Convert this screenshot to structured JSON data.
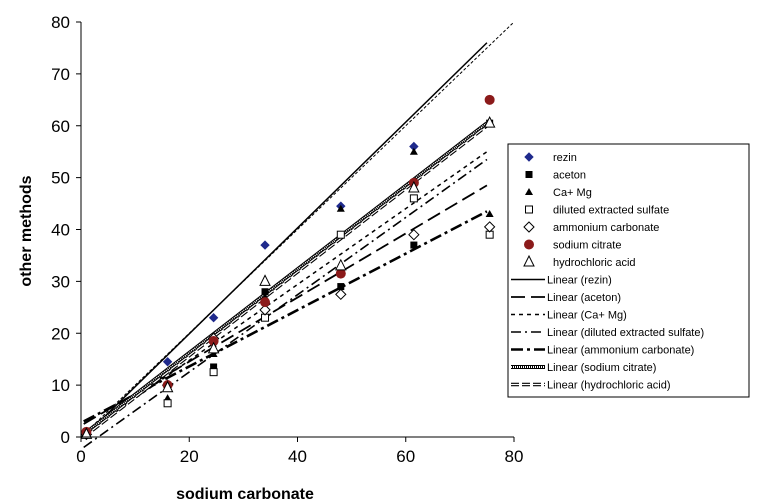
{
  "chart_data": {
    "type": "scatter",
    "xlabel": "sodium carbonate",
    "ylabel": "other methods",
    "xlim": [
      0,
      80
    ],
    "ylim": [
      0,
      80
    ],
    "x_ticks": [
      0,
      20,
      40,
      60,
      80
    ],
    "y_ticks": [
      0,
      10,
      20,
      30,
      40,
      50,
      60,
      70,
      80
    ],
    "grid": false,
    "legend_position": "right",
    "reference_line": {
      "x": [
        0,
        80
      ],
      "y": [
        0,
        80
      ],
      "style": "dotted"
    },
    "series": [
      {
        "name": "rezin",
        "marker": "diamond-filled",
        "color": "#1f2a8c",
        "x": [
          1,
          16,
          24.5,
          34,
          48,
          61.5,
          75.5
        ],
        "y": [
          1,
          14.5,
          23,
          37,
          44.5,
          56,
          65
        ]
      },
      {
        "name": "aceton",
        "marker": "square-filled",
        "color": "#000000",
        "x": [
          1,
          16,
          24.5,
          34,
          48,
          61.5,
          75.5
        ],
        "y": [
          1,
          9.5,
          13.5,
          28,
          29,
          37,
          60.5
        ]
      },
      {
        "name": "Ca+ Mg",
        "marker": "triangle-filled",
        "color": "#000000",
        "x": [
          1,
          16,
          24.5,
          34,
          48,
          61.5,
          75.5
        ],
        "y": [
          0.5,
          7.5,
          16,
          27,
          44,
          55,
          43
        ]
      },
      {
        "name": "diluted extracted sulfate",
        "marker": "square-open",
        "color": "#000000",
        "x": [
          1,
          16,
          24.5,
          34,
          48,
          61.5,
          75.5
        ],
        "y": [
          0.5,
          6.5,
          12.5,
          23,
          39,
          46,
          39
        ]
      },
      {
        "name": "ammonium carbonate",
        "marker": "diamond-open",
        "color": "#000000",
        "x": [
          1,
          16,
          24.5,
          34,
          48,
          61.5,
          75.5
        ],
        "y": [
          0.5,
          10,
          19,
          24.5,
          27.5,
          39,
          40.5
        ]
      },
      {
        "name": "sodium citrate",
        "marker": "circle-filled",
        "color": "#8b1a1a",
        "x": [
          1,
          16,
          24.5,
          34,
          48,
          61.5,
          75.5
        ],
        "y": [
          1,
          10,
          18.5,
          26,
          31.5,
          49,
          65
        ]
      },
      {
        "name": "hydrochloric acid",
        "marker": "triangle-open",
        "color": "#000000",
        "x": [
          1,
          16,
          24.5,
          34,
          48,
          61.5,
          75.5
        ],
        "y": [
          0.5,
          9.5,
          17,
          30,
          33,
          48,
          60.5
        ]
      }
    ],
    "trendlines": [
      {
        "name": "Linear (rezin)",
        "style": "solid",
        "x": [
          0.5,
          75
        ],
        "y": [
          0,
          76
        ]
      },
      {
        "name": "Linear (aceton)",
        "style": "long-dash",
        "x": [
          0.5,
          75
        ],
        "y": [
          2.5,
          48.5
        ]
      },
      {
        "name": "Linear (Ca+ Mg)",
        "style": "short-dash",
        "x": [
          0.5,
          75
        ],
        "y": [
          0.5,
          55
        ]
      },
      {
        "name": "Linear (diluted extracted sulfate)",
        "style": "dash-dot",
        "x": [
          0.5,
          75
        ],
        "y": [
          -2,
          53.5
        ]
      },
      {
        "name": "Linear (ammonium carbonate)",
        "style": "heavy-dash-dot",
        "x": [
          0.5,
          75
        ],
        "y": [
          3,
          43.5
        ]
      },
      {
        "name": "Linear (sodium citrate)",
        "style": "double",
        "x": [
          0.5,
          75
        ],
        "y": [
          0.5,
          60.5
        ]
      },
      {
        "name": "Linear (hydrochloric acid)",
        "style": "double-dash",
        "x": [
          0.5,
          75
        ],
        "y": [
          0,
          60
        ]
      }
    ]
  }
}
